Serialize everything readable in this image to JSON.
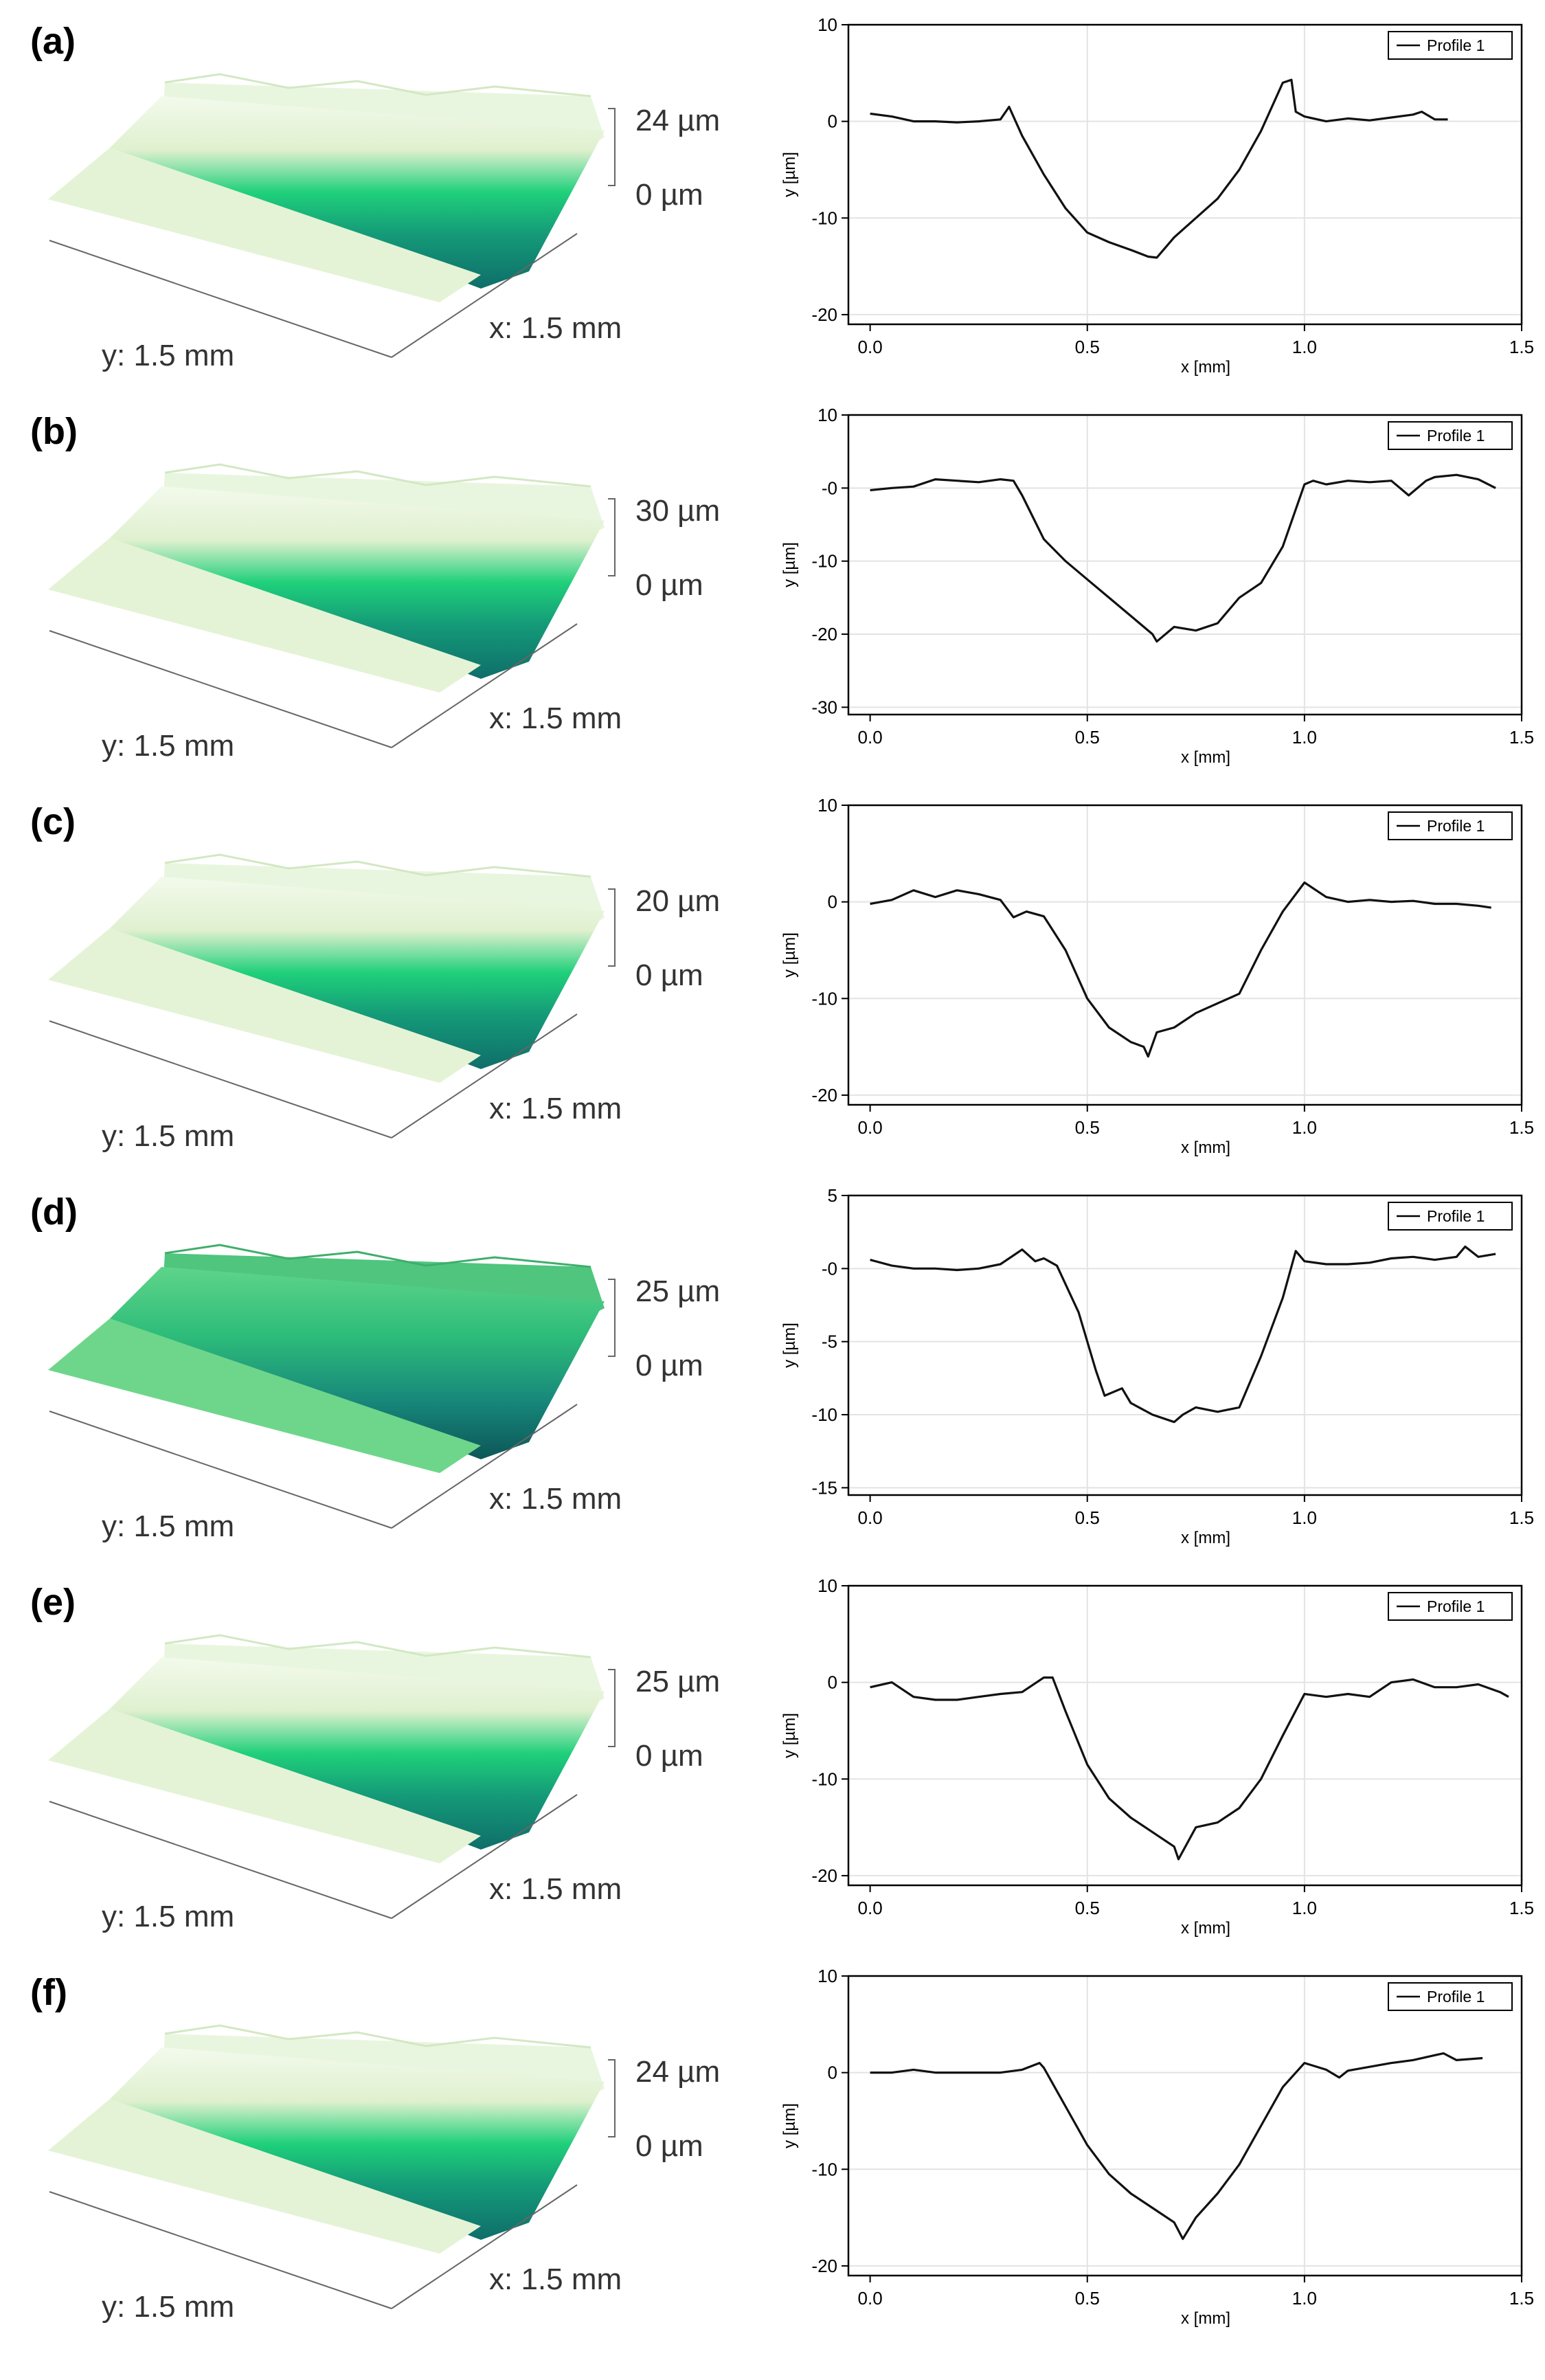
{
  "figure": {
    "colors": {
      "surface_low": "#0f6e6a",
      "surface_mid": "#22c27a",
      "surface_high": "#e8f5dd",
      "flat_fill": "#e4f3d6",
      "dark_flat_fill": "#6ed68a",
      "axis": "#000000",
      "grid": "#e3e3e3",
      "profile_line": "#111111"
    }
  },
  "panels": [
    {
      "label": "(a)",
      "surface": {
        "z_max_label": "24 µm",
        "z_min_label": "0 µm",
        "x_label": "x: 1.5 mm",
        "y_label": "y: 1.5 mm",
        "dark": false
      },
      "chart_data": {
        "type": "line",
        "xlabel": "x [mm]",
        "ylabel": "y [µm]",
        "xlim": [
          -0.05,
          1.5
        ],
        "ylim": [
          -21,
          10
        ],
        "xticks": [
          0.0,
          0.5,
          1.0,
          1.5
        ],
        "xtick_labels": [
          "0.0",
          "0.5",
          "1.0",
          "1.5"
        ],
        "yticks": [
          10,
          0,
          -10,
          -20
        ],
        "ytick_labels": [
          "10",
          "0",
          "-10",
          "-20"
        ],
        "legend": "Profile 1",
        "legend_position": "top-right",
        "grid": true,
        "series": [
          {
            "name": "Profile 1",
            "x": [
              0.0,
              0.05,
              0.1,
              0.15,
              0.2,
              0.25,
              0.3,
              0.32,
              0.35,
              0.4,
              0.45,
              0.5,
              0.55,
              0.6,
              0.64,
              0.66,
              0.7,
              0.75,
              0.8,
              0.85,
              0.9,
              0.95,
              0.97,
              0.98,
              1.0,
              1.05,
              1.1,
              1.15,
              1.2,
              1.25,
              1.27,
              1.3,
              1.33
            ],
            "y": [
              0.8,
              0.5,
              0.0,
              0.0,
              -0.1,
              0.0,
              0.2,
              1.5,
              -1.5,
              -5.5,
              -9.0,
              -11.5,
              -12.5,
              -13.3,
              -14.0,
              -14.1,
              -12.0,
              -10.0,
              -8.0,
              -5.0,
              -1.0,
              4.0,
              4.3,
              1.0,
              0.5,
              0.0,
              0.3,
              0.1,
              0.4,
              0.7,
              1.0,
              0.2,
              0.2
            ]
          }
        ]
      }
    },
    {
      "label": "(b)",
      "surface": {
        "z_max_label": "30 µm",
        "z_min_label": "0 µm",
        "x_label": "x: 1.5 mm",
        "y_label": "y: 1.5 mm",
        "dark": false
      },
      "chart_data": {
        "type": "line",
        "xlabel": "x [mm]",
        "ylabel": "y [µm]",
        "xlim": [
          -0.05,
          1.5
        ],
        "ylim": [
          -31,
          10
        ],
        "xticks": [
          0.0,
          0.5,
          1.0,
          1.5
        ],
        "xtick_labels": [
          "0.0",
          "0.5",
          "1.0",
          "1.5"
        ],
        "yticks": [
          10,
          0,
          -10,
          -20,
          -30
        ],
        "ytick_labels": [
          "10",
          "-0",
          "-10",
          "-20",
          "-30"
        ],
        "legend": "Profile 1",
        "legend_position": "top-right",
        "grid": true,
        "series": [
          {
            "name": "Profile 1",
            "x": [
              0.0,
              0.05,
              0.1,
              0.15,
              0.2,
              0.25,
              0.3,
              0.33,
              0.35,
              0.4,
              0.45,
              0.5,
              0.55,
              0.6,
              0.65,
              0.66,
              0.7,
              0.75,
              0.8,
              0.85,
              0.9,
              0.95,
              1.0,
              1.02,
              1.05,
              1.1,
              1.15,
              1.2,
              1.24,
              1.28,
              1.3,
              1.35,
              1.4,
              1.44
            ],
            "y": [
              -0.3,
              0.0,
              0.2,
              1.2,
              1.0,
              0.8,
              1.2,
              1.0,
              -1.0,
              -7.0,
              -10.0,
              -12.5,
              -15.0,
              -17.5,
              -20.0,
              -21.0,
              -19.0,
              -19.5,
              -18.5,
              -15.0,
              -13.0,
              -8.0,
              0.5,
              1.0,
              0.5,
              1.0,
              0.8,
              1.0,
              -1.0,
              1.0,
              1.5,
              1.8,
              1.2,
              0.0
            ]
          }
        ]
      }
    },
    {
      "label": "(c)",
      "surface": {
        "z_max_label": "20 µm",
        "z_min_label": "0 µm",
        "x_label": "x: 1.5 mm",
        "y_label": "y: 1.5 mm",
        "dark": false
      },
      "chart_data": {
        "type": "line",
        "xlabel": "x [mm]",
        "ylabel": "y [µm]",
        "xlim": [
          -0.05,
          1.5
        ],
        "ylim": [
          -21,
          10
        ],
        "xticks": [
          0.0,
          0.5,
          1.0,
          1.5
        ],
        "xtick_labels": [
          "0.0",
          "0.5",
          "1.0",
          "1.5"
        ],
        "yticks": [
          10,
          0,
          -10,
          -20
        ],
        "ytick_labels": [
          "10",
          "0",
          "-10",
          "-20"
        ],
        "legend": "Profile 1",
        "legend_position": "top-right",
        "grid": true,
        "series": [
          {
            "name": "Profile 1",
            "x": [
              0.0,
              0.05,
              0.1,
              0.15,
              0.2,
              0.25,
              0.3,
              0.33,
              0.36,
              0.4,
              0.45,
              0.5,
              0.55,
              0.6,
              0.63,
              0.64,
              0.66,
              0.7,
              0.75,
              0.8,
              0.85,
              0.9,
              0.95,
              1.0,
              1.05,
              1.1,
              1.15,
              1.2,
              1.25,
              1.3,
              1.35,
              1.4,
              1.43
            ],
            "y": [
              -0.2,
              0.2,
              1.2,
              0.5,
              1.2,
              0.8,
              0.2,
              -1.6,
              -1.0,
              -1.5,
              -5.0,
              -10.0,
              -13.0,
              -14.5,
              -15.0,
              -16.0,
              -13.5,
              -13.0,
              -11.5,
              -10.5,
              -9.5,
              -5.0,
              -1.0,
              2.0,
              0.5,
              0.0,
              0.2,
              0.0,
              0.1,
              -0.2,
              -0.2,
              -0.4,
              -0.6
            ]
          }
        ]
      }
    },
    {
      "label": "(d)",
      "surface": {
        "z_max_label": "25 µm",
        "z_min_label": "0 µm",
        "x_label": "x: 1.5 mm",
        "y_label": "y: 1.5 mm",
        "dark": true
      },
      "chart_data": {
        "type": "line",
        "xlabel": "x [mm]",
        "ylabel": "y [µm]",
        "xlim": [
          -0.05,
          1.5
        ],
        "ylim": [
          -15.5,
          5
        ],
        "xticks": [
          0.0,
          0.5,
          1.0,
          1.5
        ],
        "xtick_labels": [
          "0.0",
          "0.5",
          "1.0",
          "1.5"
        ],
        "yticks": [
          5,
          0,
          -5,
          -10,
          -15
        ],
        "ytick_labels": [
          "5",
          "-0",
          "-5",
          "-10",
          "-15"
        ],
        "legend": "Profile 1",
        "legend_position": "top-right",
        "grid": true,
        "series": [
          {
            "name": "Profile 1",
            "x": [
              0.0,
              0.05,
              0.1,
              0.15,
              0.2,
              0.25,
              0.3,
              0.35,
              0.38,
              0.4,
              0.43,
              0.48,
              0.52,
              0.54,
              0.58,
              0.6,
              0.65,
              0.7,
              0.72,
              0.75,
              0.8,
              0.85,
              0.9,
              0.95,
              0.98,
              1.0,
              1.05,
              1.1,
              1.15,
              1.2,
              1.25,
              1.3,
              1.35,
              1.37,
              1.4,
              1.44
            ],
            "y": [
              0.6,
              0.2,
              0.0,
              0.0,
              -0.1,
              0.0,
              0.3,
              1.3,
              0.5,
              0.7,
              0.2,
              -3.0,
              -7.0,
              -8.7,
              -8.2,
              -9.2,
              -10.0,
              -10.5,
              -10.0,
              -9.5,
              -9.8,
              -9.5,
              -6.0,
              -2.0,
              1.2,
              0.5,
              0.3,
              0.3,
              0.4,
              0.7,
              0.8,
              0.6,
              0.8,
              1.5,
              0.8,
              1.0
            ]
          }
        ]
      }
    },
    {
      "label": "(e)",
      "surface": {
        "z_max_label": "25 µm",
        "z_min_label": "0 µm",
        "x_label": "x: 1.5 mm",
        "y_label": "y: 1.5 mm",
        "dark": false
      },
      "chart_data": {
        "type": "line",
        "xlabel": "x [mm]",
        "ylabel": "y [µm]",
        "xlim": [
          -0.05,
          1.5
        ],
        "ylim": [
          -21,
          10
        ],
        "xticks": [
          0.0,
          0.5,
          1.0,
          1.5
        ],
        "xtick_labels": [
          "0.0",
          "0.5",
          "1.0",
          "1.5"
        ],
        "yticks": [
          10,
          0,
          -10,
          -20
        ],
        "ytick_labels": [
          "10",
          "0",
          "-10",
          "-20"
        ],
        "legend": "Profile 1",
        "legend_position": "top-right",
        "grid": true,
        "series": [
          {
            "name": "Profile 1",
            "x": [
              0.0,
              0.05,
              0.1,
              0.15,
              0.2,
              0.25,
              0.3,
              0.35,
              0.4,
              0.42,
              0.45,
              0.5,
              0.55,
              0.6,
              0.65,
              0.7,
              0.71,
              0.75,
              0.8,
              0.85,
              0.9,
              0.95,
              1.0,
              1.05,
              1.1,
              1.15,
              1.2,
              1.25,
              1.3,
              1.35,
              1.4,
              1.45,
              1.47
            ],
            "y": [
              -0.5,
              0.0,
              -1.5,
              -1.8,
              -1.8,
              -1.5,
              -1.2,
              -1.0,
              0.5,
              0.5,
              -3.0,
              -8.5,
              -12.0,
              -14.0,
              -15.5,
              -17.0,
              -18.3,
              -15.0,
              -14.5,
              -13.0,
              -10.0,
              -5.5,
              -1.2,
              -1.5,
              -1.2,
              -1.5,
              0.0,
              0.3,
              -0.5,
              -0.5,
              -0.2,
              -1.0,
              -1.5
            ]
          }
        ]
      }
    },
    {
      "label": "(f)",
      "surface": {
        "z_max_label": "24 µm",
        "z_min_label": "0 µm",
        "x_label": "x: 1.5 mm",
        "y_label": "y: 1.5 mm",
        "dark": false
      },
      "chart_data": {
        "type": "line",
        "xlabel": "x [mm]",
        "ylabel": "y [µm]",
        "xlim": [
          -0.05,
          1.5
        ],
        "ylim": [
          -21,
          10
        ],
        "xticks": [
          0.0,
          0.5,
          1.0,
          1.5
        ],
        "xtick_labels": [
          "0.0",
          "0.5",
          "1.0",
          "1.5"
        ],
        "yticks": [
          10,
          0,
          -10,
          -20
        ],
        "ytick_labels": [
          "10",
          "0",
          "-10",
          "-20"
        ],
        "legend": "Profile 1",
        "legend_position": "top-right",
        "grid": true,
        "series": [
          {
            "name": "Profile 1",
            "x": [
              0.0,
              0.05,
              0.1,
              0.15,
              0.2,
              0.25,
              0.3,
              0.35,
              0.39,
              0.4,
              0.45,
              0.5,
              0.55,
              0.6,
              0.65,
              0.7,
              0.72,
              0.75,
              0.8,
              0.85,
              0.9,
              0.95,
              1.0,
              1.05,
              1.08,
              1.1,
              1.15,
              1.2,
              1.25,
              1.3,
              1.32,
              1.35,
              1.41
            ],
            "y": [
              0.0,
              0.0,
              0.3,
              0.0,
              0.0,
              0.0,
              0.0,
              0.3,
              1.0,
              0.5,
              -3.5,
              -7.5,
              -10.5,
              -12.5,
              -14.0,
              -15.5,
              -17.2,
              -15.0,
              -12.5,
              -9.5,
              -5.5,
              -1.5,
              1.0,
              0.3,
              -0.5,
              0.2,
              0.6,
              1.0,
              1.3,
              1.8,
              2.0,
              1.3,
              1.5
            ]
          }
        ]
      }
    }
  ]
}
